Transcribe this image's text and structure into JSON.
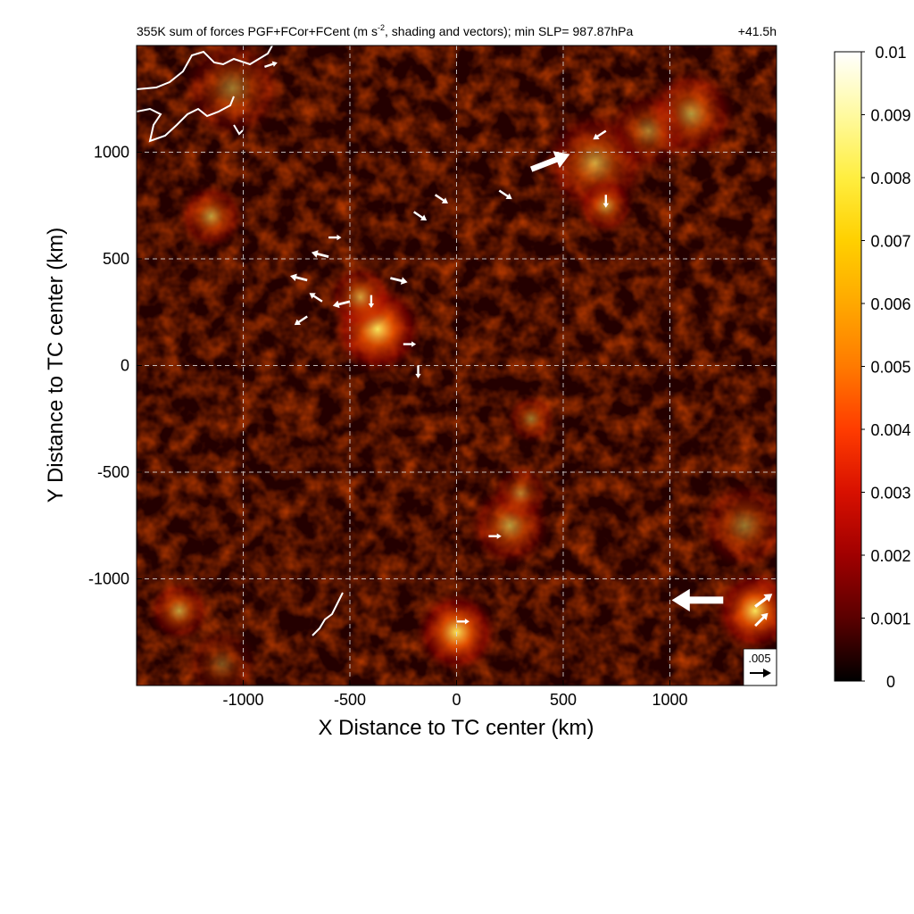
{
  "chart_data": {
    "type": "heatmap",
    "title_main": "355K sum of forces PGF+FCor+FCent (m s",
    "title_sup": "-2",
    "title_rest": ", shading and vectors); min SLP= 987.87hPa",
    "time_label": "+41.5h",
    "xlabel": "X Distance to TC center (km)",
    "ylabel": "Y Distance to TC center (km)",
    "xlim": [
      -1500,
      1500
    ],
    "ylim": [
      -1500,
      1500
    ],
    "x_ticks": [
      -1000,
      -500,
      0,
      500,
      1000
    ],
    "y_ticks": [
      -1000,
      -500,
      0,
      500,
      1000
    ],
    "x_tick_labels": [
      "-1000",
      "-500",
      "0",
      "500",
      "1000"
    ],
    "y_tick_labels": [
      "-1000",
      "-500",
      "0",
      "500",
      "1000"
    ],
    "grid": true,
    "colorbar": {
      "min": 0,
      "max": 0.01,
      "ticks": [
        0,
        0.001,
        0.002,
        0.003,
        0.004,
        0.005,
        0.006,
        0.007,
        0.008,
        0.009,
        0.01
      ],
      "tick_labels": [
        "0",
        "0.001",
        "0.002",
        "0.003",
        "0.004",
        "0.005",
        "0.006",
        "0.007",
        "0.008",
        "0.009",
        "0.01"
      ],
      "colors": [
        "#000000",
        "#5a0000",
        "#a00000",
        "#d81000",
        "#ff3c00",
        "#ff7a00",
        "#ffa800",
        "#ffd000",
        "#ffee40",
        "#fffaa0",
        "#ffffff"
      ]
    },
    "reference_vector": {
      "label": ".005",
      "value": 0.005
    },
    "hotspots": [
      {
        "x": -370,
        "y": 170,
        "r": 220,
        "v": 0.006
      },
      {
        "x": -450,
        "y": 320,
        "r": 160,
        "v": 0.004
      },
      {
        "x": 650,
        "y": 950,
        "r": 260,
        "v": 0.004
      },
      {
        "x": 1100,
        "y": 1180,
        "r": 220,
        "v": 0.004
      },
      {
        "x": 900,
        "y": 1100,
        "r": 200,
        "v": 0.003
      },
      {
        "x": -1150,
        "y": 700,
        "r": 160,
        "v": 0.004
      },
      {
        "x": -1050,
        "y": 1300,
        "r": 250,
        "v": 0.003
      },
      {
        "x": 0,
        "y": -1250,
        "r": 200,
        "v": 0.006
      },
      {
        "x": 250,
        "y": -750,
        "r": 200,
        "v": 0.004
      },
      {
        "x": 300,
        "y": -600,
        "r": 140,
        "v": 0.003
      },
      {
        "x": 1400,
        "y": -1150,
        "r": 200,
        "v": 0.006
      },
      {
        "x": 1350,
        "y": -750,
        "r": 220,
        "v": 0.003
      },
      {
        "x": -1300,
        "y": -1150,
        "r": 150,
        "v": 0.004
      },
      {
        "x": 700,
        "y": 750,
        "r": 140,
        "v": 0.004
      },
      {
        "x": 350,
        "y": -250,
        "r": 120,
        "v": 0.003
      },
      {
        "x": -1100,
        "y": -1400,
        "r": 180,
        "v": 0.002
      }
    ],
    "vectors": [
      {
        "x": 1250,
        "y": -1100,
        "u": -0.012,
        "v": 0.0
      },
      {
        "x": 350,
        "y": 920,
        "u": 0.009,
        "v": 0.0035
      },
      {
        "x": -400,
        "y": 330,
        "u": 0.0,
        "v": -0.003
      },
      {
        "x": -700,
        "y": 400,
        "u": -0.004,
        "v": 0.001
      },
      {
        "x": -600,
        "y": 510,
        "u": -0.004,
        "v": 0.001
      },
      {
        "x": -310,
        "y": 410,
        "u": 0.004,
        "v": -0.001
      },
      {
        "x": -500,
        "y": 300,
        "u": -0.004,
        "v": -0.001
      },
      {
        "x": -700,
        "y": 230,
        "u": -0.003,
        "v": -0.002
      },
      {
        "x": -630,
        "y": 300,
        "u": -0.003,
        "v": 0.002
      },
      {
        "x": -180,
        "y": 0,
        "u": 0.0,
        "v": -0.003
      },
      {
        "x": -250,
        "y": 100,
        "u": 0.003,
        "v": 0.0
      },
      {
        "x": 700,
        "y": 800,
        "u": 0.0,
        "v": -0.003
      },
      {
        "x": 700,
        "y": 1100,
        "u": -0.003,
        "v": -0.002
      },
      {
        "x": 200,
        "y": 820,
        "u": 0.003,
        "v": -0.002
      },
      {
        "x": 1400,
        "y": -1130,
        "u": 0.004,
        "v": 0.003
      },
      {
        "x": 1400,
        "y": -1220,
        "u": 0.003,
        "v": 0.003
      },
      {
        "x": -900,
        "y": 1400,
        "u": 0.003,
        "v": 0.001
      },
      {
        "x": -200,
        "y": 720,
        "u": 0.003,
        "v": -0.002
      },
      {
        "x": -600,
        "y": 600,
        "u": 0.003,
        "v": 0.0
      },
      {
        "x": 150,
        "y": -800,
        "u": 0.003,
        "v": 0.0
      },
      {
        "x": 0,
        "y": -1200,
        "u": 0.003,
        "v": 0.0
      },
      {
        "x": -100,
        "y": 800,
        "u": 0.003,
        "v": -0.002
      }
    ]
  }
}
